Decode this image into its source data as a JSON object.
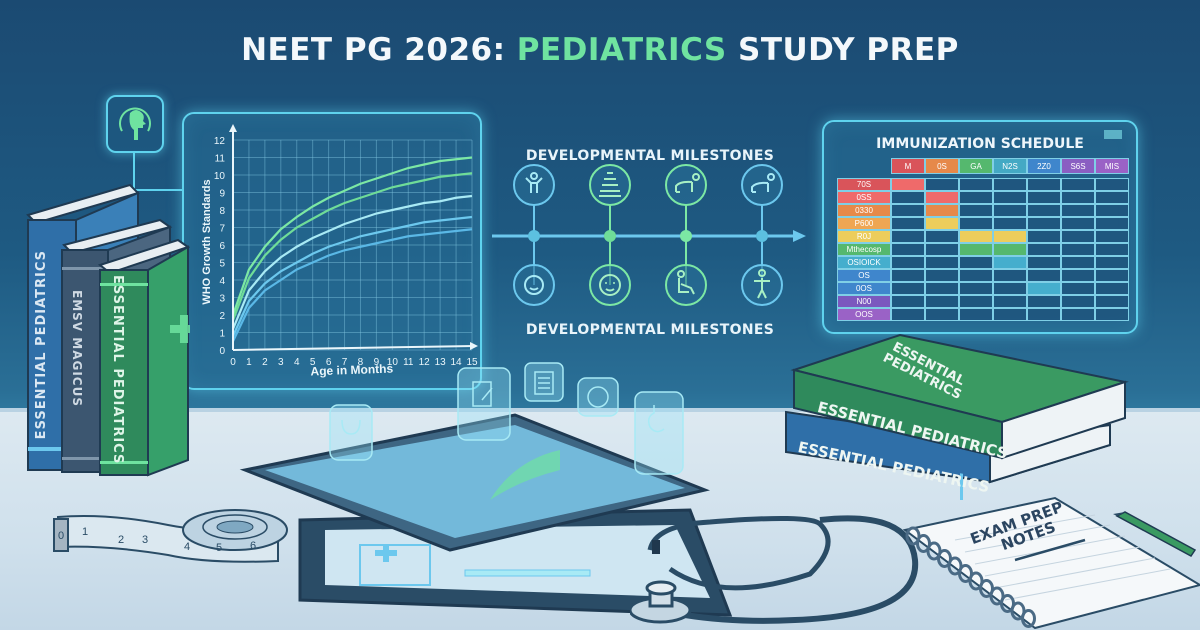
{
  "header": {
    "title_prefix": "NEET PG 2026:",
    "title_accent": "PEDIATRICS",
    "title_suffix": "STUDY PREP"
  },
  "colors": {
    "background": "#1e5a82",
    "accent_green": "#6fe3a0",
    "glow_cyan": "#5fd3ee",
    "desk": "#d7e6f0"
  },
  "chip": {
    "icon": "head-profile-icon"
  },
  "chart_data": {
    "type": "line",
    "title": "",
    "xlabel": "Age in Months",
    "ylabel": "WHO Growth Standards",
    "x": [
      0,
      1,
      2,
      3,
      4,
      5,
      6,
      7,
      8,
      9,
      10,
      11,
      12,
      13,
      14,
      15
    ],
    "xlim": [
      0,
      15
    ],
    "ylim": [
      0,
      12
    ],
    "x_ticks": [
      "0",
      "1",
      "2",
      "3",
      "4",
      "5",
      "6",
      "7",
      "8",
      "9",
      "10",
      "11",
      "12",
      "13",
      "14",
      "15"
    ],
    "y_ticks": [
      "0",
      "1",
      "2",
      "3",
      "4",
      "5",
      "6",
      "7",
      "8",
      "9",
      "10",
      "11",
      "12"
    ],
    "grid": true,
    "series": [
      {
        "name": "curve-1 (green, top)",
        "color": "#7ce8a4",
        "values": [
          2.0,
          4.6,
          5.9,
          6.9,
          7.6,
          8.2,
          8.7,
          9.1,
          9.5,
          9.8,
          10.1,
          10.4,
          10.6,
          10.8,
          10.9,
          11.0
        ]
      },
      {
        "name": "curve-2 (green)",
        "color": "#6fdc98",
        "values": [
          1.7,
          4.1,
          5.4,
          6.3,
          7.0,
          7.5,
          8.0,
          8.4,
          8.7,
          9.0,
          9.3,
          9.5,
          9.7,
          9.9,
          10.0,
          10.1
        ]
      },
      {
        "name": "curve-3 (cyan)",
        "color": "#a8eaf5",
        "values": [
          1.2,
          3.4,
          4.5,
          5.3,
          5.9,
          6.4,
          6.8,
          7.2,
          7.5,
          7.8,
          8.0,
          8.2,
          8.4,
          8.5,
          8.7,
          8.8
        ]
      },
      {
        "name": "curve-4 (blue)",
        "color": "#6cc8ee",
        "values": [
          0.8,
          2.8,
          3.8,
          4.5,
          5.0,
          5.5,
          5.9,
          6.2,
          6.5,
          6.7,
          6.9,
          7.1,
          7.3,
          7.4,
          7.5,
          7.6
        ]
      },
      {
        "name": "curve-5 (blue, bottom)",
        "color": "#5ab8e6",
        "values": [
          0.5,
          2.4,
          3.4,
          4.0,
          4.6,
          5.0,
          5.4,
          5.7,
          5.9,
          6.1,
          6.3,
          6.5,
          6.6,
          6.7,
          6.8,
          6.9
        ]
      }
    ]
  },
  "milestones": {
    "title_top": "DEVELOPMENTAL MILESTONES",
    "title_bottom": "DEVELOPMENTAL MILESTONES",
    "top_icons": [
      "child-arms-up-icon",
      "stacking-rings-toy-icon",
      "crawling-baby-icon",
      "crawling-baby-icon"
    ],
    "bottom_icons": [
      "baby-face-with-hands-icon",
      "baby-face-icon",
      "sitting-baby-icon",
      "standing-toddler-icon"
    ]
  },
  "immunization": {
    "title": "IMMUNIZATION SCHEDULE",
    "columns": [
      {
        "label": "M",
        "color": "#d9545a"
      },
      {
        "label": "0S",
        "color": "#e6894a"
      },
      {
        "label": "GA",
        "color": "#55b86e"
      },
      {
        "label": "N2S",
        "color": "#44a9c4"
      },
      {
        "label": "2Z0",
        "color": "#3f86cc"
      },
      {
        "label": "S6S",
        "color": "#8a5fc2"
      },
      {
        "label": "MIS",
        "color": "#9a62c6"
      }
    ],
    "rows": [
      {
        "label": "70S",
        "color": "#d9545a"
      },
      {
        "label": "0SS",
        "color": "#ef6a6a"
      },
      {
        "label": "0330",
        "color": "#e6894a"
      },
      {
        "label": "P600",
        "color": "#efa652"
      },
      {
        "label": "R0J",
        "color": "#eccd5c"
      },
      {
        "label": "Mthecosp",
        "color": "#55b86e"
      },
      {
        "label": "OSIOICK",
        "color": "#45aecd"
      },
      {
        "label": "OS",
        "color": "#3f86cc"
      },
      {
        "label": "0OS",
        "color": "#3f86cc"
      },
      {
        "label": "N00",
        "color": "#7b58be"
      },
      {
        "label": "OOS",
        "color": "#9a62c6"
      }
    ]
  },
  "books_left": [
    {
      "spine": "ESSENTIAL PEDIATRICS",
      "color": "#2f6fa8"
    },
    {
      "spine": "EMSV MAGICUS",
      "color": "#3c5670"
    },
    {
      "spine": "ESSENTIAL PEDIATRICS",
      "color": "#2f8a5c"
    }
  ],
  "books_right": {
    "top_cover": "ESSENTIAL PEDIATRICS",
    "top_spine": "ESSENTIAL PEDIATRICS",
    "bottom_spine": "ESSENTIAL PEDIATRICS"
  },
  "tablet": {
    "holo_icons": [
      "stethoscope-icon",
      "notes-edit-icon",
      "clipboard-icon",
      "brain-icon",
      "stomach-icon"
    ]
  },
  "tape_measure": {
    "marks": [
      "0",
      "1",
      "2",
      "3",
      "4",
      "5",
      "6"
    ]
  },
  "notebook": {
    "line1": "EXAM PREP",
    "line2": "NOTES"
  }
}
